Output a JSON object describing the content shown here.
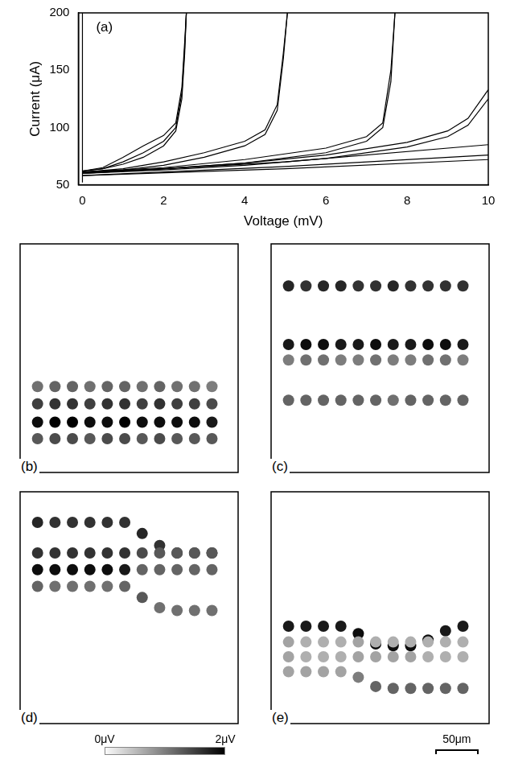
{
  "chart_data": [
    {
      "type": "line",
      "title": "(a)",
      "x_label": "Voltage (mV)",
      "y_label": "Current (μA)",
      "xlim": [
        -0.1,
        10
      ],
      "ylim": [
        50,
        200
      ],
      "xticks": [
        0,
        2,
        4,
        6,
        8,
        10
      ],
      "yticks": [
        50,
        100,
        150,
        200
      ],
      "grid": false,
      "series": [
        {
          "color": "#000000",
          "x": [
            0,
            0
          ],
          "values": [
            52,
            200
          ]
        },
        {
          "color": "#000000",
          "x": [
            0,
            0.5,
            1,
            1.5,
            2,
            2.3,
            2.45,
            2.52,
            2.56
          ],
          "values": [
            62,
            64,
            70,
            78,
            88,
            100,
            130,
            170,
            200
          ]
        },
        {
          "color": "#000000",
          "x": [
            0,
            0.5,
            1,
            1.5,
            2,
            2.3,
            2.45,
            2.52,
            2.56
          ],
          "values": [
            62,
            65,
            74,
            84,
            93,
            104,
            135,
            175,
            200
          ]
        },
        {
          "color": "#000000",
          "x": [
            0,
            0.5,
            1,
            1.5,
            2,
            2.3,
            2.45,
            2.52,
            2.56
          ],
          "values": [
            62,
            64,
            68,
            74,
            84,
            97,
            125,
            165,
            200
          ]
        },
        {
          "color": "#000000",
          "x": [
            0,
            1,
            2,
            3,
            4,
            4.5,
            4.8,
            4.95,
            5.05
          ],
          "values": [
            61,
            63,
            67,
            74,
            84,
            94,
            115,
            160,
            200
          ]
        },
        {
          "color": "#000000",
          "x": [
            0,
            1,
            2,
            3,
            4,
            4.5,
            4.8,
            4.95,
            5.05
          ],
          "values": [
            61,
            64,
            70,
            78,
            88,
            98,
            120,
            165,
            200
          ]
        },
        {
          "color": "#000000",
          "x": [
            0,
            2,
            4,
            6,
            7,
            7.4,
            7.6,
            7.7
          ],
          "values": [
            61,
            64,
            69,
            78,
            88,
            100,
            140,
            200
          ]
        },
        {
          "color": "#000000",
          "x": [
            0,
            2,
            4,
            6,
            7,
            7.4,
            7.6,
            7.7
          ],
          "values": [
            61,
            65,
            72,
            82,
            92,
            104,
            150,
            200
          ]
        },
        {
          "color": "#000000",
          "x": [
            0,
            2,
            4,
            6,
            8,
            9,
            9.5,
            10
          ],
          "values": [
            60,
            63,
            67,
            73,
            83,
            92,
            102,
            125
          ]
        },
        {
          "color": "#000000",
          "x": [
            0,
            2,
            4,
            6,
            8,
            9,
            9.5,
            10
          ],
          "values": [
            60,
            64,
            69,
            76,
            87,
            97,
            108,
            133
          ]
        },
        {
          "color": "#000000",
          "x": [
            0,
            5,
            10
          ],
          "values": [
            60,
            70,
            85
          ]
        },
        {
          "color": "#000000",
          "x": [
            0,
            5,
            10
          ],
          "values": [
            58,
            66,
            76
          ]
        },
        {
          "color": "#000000",
          "x": [
            0,
            5,
            10
          ],
          "values": [
            58,
            64,
            72
          ]
        }
      ]
    },
    {
      "type": "scatter",
      "title": "(b)",
      "xlim": [
        0,
        250
      ],
      "ylim": [
        0,
        250
      ],
      "tick_labels": false,
      "x": [
        20,
        40,
        60,
        80,
        100,
        120,
        140,
        160,
        180,
        200,
        220
      ],
      "rows": [
        {
          "y": [
            156,
            156,
            156,
            156,
            156,
            156,
            156,
            156,
            156,
            156,
            156
          ],
          "values": [
            1.1,
            1.2,
            1.2,
            1.1,
            1.2,
            1.2,
            1.1,
            1.2,
            1.1,
            1.1,
            1.0
          ]
        },
        {
          "y": [
            175,
            175,
            175,
            175,
            175,
            175,
            175,
            175,
            175,
            175,
            175
          ],
          "values": [
            1.5,
            1.6,
            1.6,
            1.5,
            1.6,
            1.6,
            1.5,
            1.6,
            1.5,
            1.5,
            1.4
          ]
        },
        {
          "y": [
            195,
            195,
            195,
            195,
            195,
            195,
            195,
            195,
            195,
            195,
            195
          ],
          "values": [
            1.9,
            2.0,
            2.0,
            1.9,
            1.9,
            2.0,
            1.9,
            1.9,
            1.9,
            1.9,
            1.8
          ]
        },
        {
          "y": [
            213,
            213,
            213,
            213,
            213,
            213,
            213,
            213,
            213,
            213,
            213
          ],
          "values": [
            1.3,
            1.4,
            1.4,
            1.3,
            1.4,
            1.4,
            1.3,
            1.4,
            1.3,
            1.3,
            1.3
          ]
        }
      ]
    },
    {
      "type": "scatter",
      "title": "(c)",
      "xlim": [
        0,
        250
      ],
      "ylim": [
        0,
        250
      ],
      "tick_labels": false,
      "x": [
        20,
        40,
        60,
        80,
        100,
        120,
        140,
        160,
        180,
        200,
        220
      ],
      "rows": [
        {
          "y": [
            46,
            46,
            46,
            46,
            46,
            46,
            46,
            46,
            46,
            46,
            46
          ],
          "values": [
            1.7,
            1.6,
            1.7,
            1.7,
            1.6,
            1.6,
            1.7,
            1.6,
            1.6,
            1.6,
            1.6
          ]
        },
        {
          "y": [
            110,
            110,
            110,
            110,
            110,
            110,
            110,
            110,
            110,
            110,
            110
          ],
          "values": [
            1.8,
            1.9,
            1.9,
            1.8,
            1.8,
            1.9,
            1.8,
            1.8,
            1.9,
            1.9,
            1.8
          ]
        },
        {
          "y": [
            127,
            127,
            127,
            127,
            127,
            127,
            127,
            127,
            127,
            127,
            127
          ],
          "values": [
            1.0,
            1.1,
            1.1,
            1.0,
            1.0,
            1.1,
            1.0,
            1.0,
            1.1,
            1.1,
            1.0
          ]
        },
        {
          "y": [
            171,
            171,
            171,
            171,
            171,
            171,
            171,
            171,
            171,
            171,
            171
          ],
          "values": [
            1.2,
            1.2,
            1.2,
            1.2,
            1.2,
            1.2,
            1.1,
            1.2,
            1.2,
            1.2,
            1.2
          ]
        }
      ]
    },
    {
      "type": "scatter",
      "title": "(d)",
      "xlim": [
        0,
        250
      ],
      "ylim": [
        0,
        250
      ],
      "tick_labels": false,
      "x": [
        20,
        40,
        60,
        80,
        100,
        120,
        140,
        160,
        180,
        200,
        220
      ],
      "rows": [
        {
          "y": [
            66,
            66,
            66,
            66,
            66,
            66,
            66,
            66,
            66,
            66,
            66
          ],
          "values": [
            1.6,
            1.6,
            1.6,
            1.6,
            1.6,
            1.6,
            1.4,
            1.3,
            1.3,
            1.3,
            1.3
          ]
        },
        {
          "y": [
            84,
            84,
            84,
            84,
            84,
            84,
            84,
            84,
            84,
            84,
            84
          ],
          "values": [
            1.9,
            1.9,
            1.9,
            1.9,
            1.9,
            1.8,
            1.2,
            1.2,
            1.2,
            1.2,
            1.2
          ]
        },
        {
          "y": [
            102,
            102,
            102,
            102,
            102,
            102,
            114,
            125,
            128,
            128,
            128
          ],
          "values": [
            1.2,
            1.1,
            1.1,
            1.1,
            1.1,
            1.2,
            1.3,
            1.1,
            1.1,
            1.1,
            1.1
          ]
        },
        {
          "y": [
            33,
            33,
            33,
            33,
            33,
            33,
            45,
            58,
            66,
            66,
            66
          ],
          "values": [
            1.7,
            1.6,
            1.6,
            1.6,
            1.6,
            1.6,
            1.7,
            1.6,
            1.5,
            1.5,
            1.5
          ]
        }
      ]
    },
    {
      "type": "scatter",
      "title": "(e)",
      "xlim": [
        0,
        250
      ],
      "ylim": [
        0,
        250
      ],
      "tick_labels": false,
      "x": [
        20,
        40,
        60,
        80,
        100,
        120,
        140,
        160,
        180,
        200,
        220
      ],
      "rows": [
        {
          "y": [
            162,
            162,
            162,
            162,
            162,
            162,
            162,
            162,
            162,
            162,
            162
          ],
          "values": [
            0.7,
            0.6,
            0.6,
            0.6,
            0.7,
            0.6,
            0.6,
            0.6,
            0.6,
            0.6,
            0.6
          ]
        },
        {
          "y": [
            178,
            178,
            178,
            178,
            178,
            178,
            178,
            178,
            178,
            178,
            178
          ],
          "values": [
            0.7,
            0.6,
            0.6,
            0.6,
            0.7,
            0.7,
            0.7,
            0.7,
            0.6,
            0.6,
            0.6
          ]
        },
        {
          "y": [
            194,
            194,
            194,
            194,
            200,
            210,
            212,
            212,
            212,
            212,
            212
          ],
          "values": [
            0.7,
            0.7,
            0.7,
            0.7,
            1.0,
            1.2,
            1.2,
            1.2,
            1.2,
            1.2,
            1.2
          ]
        },
        {
          "y": [
            145,
            145,
            145,
            145,
            153,
            164,
            166,
            166,
            160,
            150,
            145
          ],
          "values": [
            1.8,
            1.8,
            1.8,
            1.8,
            1.9,
            1.9,
            1.9,
            1.9,
            1.9,
            1.8,
            1.8
          ]
        }
      ]
    }
  ],
  "colorbar": {
    "range": [
      0,
      2
    ],
    "ticks": [
      {
        "value": 0,
        "label": "0μV"
      },
      {
        "value": 2,
        "label": "2μV"
      }
    ]
  },
  "scale_bar": {
    "length": 50,
    "label": "50μm"
  }
}
